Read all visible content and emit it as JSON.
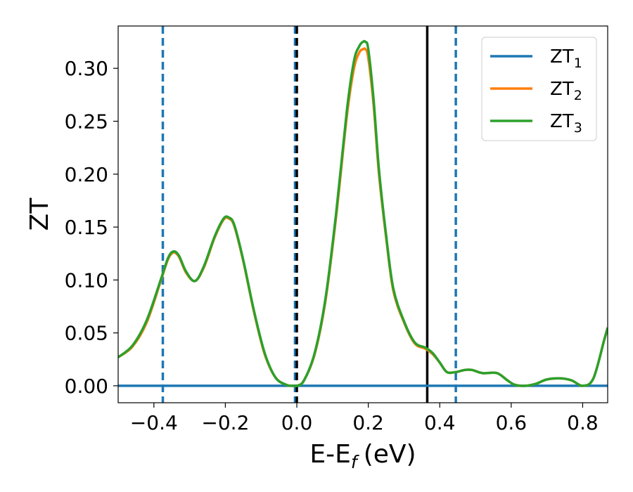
{
  "chart_data": {
    "type": "line",
    "title": "",
    "xlabel": "E-E",
    "xlabel_sub": "f",
    "xlabel_unit": "(eV)",
    "ylabel": "ZT",
    "xlim": [
      -0.5,
      0.87
    ],
    "ylim": [
      -0.016,
      0.34
    ],
    "grid": false,
    "legend_position": "top-right",
    "xticks": [
      -0.4,
      -0.2,
      0.0,
      0.2,
      0.4,
      0.6,
      0.8
    ],
    "xtick_labels": [
      "−0.4",
      "−0.2",
      "0.0",
      "0.2",
      "0.4",
      "0.6",
      "0.8"
    ],
    "yticks": [
      0.0,
      0.05,
      0.1,
      0.15,
      0.2,
      0.25,
      0.3
    ],
    "ytick_labels": [
      "0.00",
      "0.05",
      "0.10",
      "0.15",
      "0.20",
      "0.25",
      "0.30"
    ],
    "vlines": [
      {
        "x": -0.375,
        "color": "#1f77b4",
        "style": "dashed"
      },
      {
        "x": -0.005,
        "color": "#1f77b4",
        "style": "dashed"
      },
      {
        "x": 0.0,
        "color": "#000000",
        "style": "dashed"
      },
      {
        "x": 0.365,
        "color": "#000000",
        "style": "solid"
      },
      {
        "x": 0.445,
        "color": "#1f77b4",
        "style": "dashed"
      }
    ],
    "series": [
      {
        "name": "ZT",
        "name_sub": "1",
        "color": "#1f77b4",
        "x": [
          -0.5,
          -0.3,
          -0.1,
          0.0,
          0.2,
          0.4,
          0.6,
          0.8,
          0.87
        ],
        "y": [
          0.0,
          0.0,
          0.0,
          0.0,
          0.0,
          0.0,
          0.0,
          0.0,
          0.0
        ]
      },
      {
        "name": "ZT",
        "name_sub": "2",
        "color": "#ff7f0e",
        "x": [
          -0.5,
          -0.46,
          -0.42,
          -0.38,
          -0.36,
          -0.345,
          -0.33,
          -0.31,
          -0.285,
          -0.26,
          -0.23,
          -0.205,
          -0.19,
          -0.175,
          -0.15,
          -0.12,
          -0.09,
          -0.06,
          -0.03,
          -0.01,
          0.0,
          0.02,
          0.05,
          0.08,
          0.11,
          0.14,
          0.16,
          0.175,
          0.185,
          0.192,
          0.2,
          0.215,
          0.23,
          0.25,
          0.27,
          0.3,
          0.33,
          0.36,
          0.38,
          0.4,
          0.42,
          0.445,
          0.47,
          0.49,
          0.52,
          0.56,
          0.59,
          0.61,
          0.64,
          0.67,
          0.7,
          0.74,
          0.77,
          0.8,
          0.83,
          0.86,
          0.87
        ],
        "y": [
          0.027,
          0.037,
          0.06,
          0.1,
          0.12,
          0.126,
          0.122,
          0.107,
          0.099,
          0.112,
          0.14,
          0.157,
          0.158,
          0.151,
          0.118,
          0.07,
          0.03,
          0.008,
          0.001,
          0.0,
          0.0,
          0.005,
          0.03,
          0.08,
          0.16,
          0.255,
          0.3,
          0.315,
          0.318,
          0.318,
          0.31,
          0.265,
          0.2,
          0.14,
          0.09,
          0.06,
          0.04,
          0.035,
          0.03,
          0.022,
          0.013,
          0.013,
          0.015,
          0.015,
          0.012,
          0.012,
          0.005,
          0.001,
          0.0,
          0.002,
          0.006,
          0.007,
          0.005,
          0.0,
          0.007,
          0.043,
          0.055
        ]
      },
      {
        "name": "ZT",
        "name_sub": "3",
        "color": "#2ca02c",
        "x": [
          -0.5,
          -0.46,
          -0.42,
          -0.38,
          -0.36,
          -0.345,
          -0.33,
          -0.31,
          -0.285,
          -0.26,
          -0.23,
          -0.205,
          -0.19,
          -0.175,
          -0.15,
          -0.12,
          -0.09,
          -0.06,
          -0.03,
          -0.01,
          0.0,
          0.02,
          0.05,
          0.08,
          0.11,
          0.14,
          0.16,
          0.175,
          0.185,
          0.192,
          0.2,
          0.215,
          0.23,
          0.25,
          0.27,
          0.3,
          0.33,
          0.36,
          0.38,
          0.4,
          0.42,
          0.445,
          0.47,
          0.49,
          0.52,
          0.56,
          0.59,
          0.61,
          0.64,
          0.67,
          0.7,
          0.74,
          0.77,
          0.8,
          0.83,
          0.86,
          0.87
        ],
        "y": [
          0.027,
          0.038,
          0.062,
          0.101,
          0.121,
          0.127,
          0.123,
          0.108,
          0.099,
          0.113,
          0.141,
          0.158,
          0.159,
          0.152,
          0.119,
          0.071,
          0.031,
          0.008,
          0.001,
          0.0,
          0.0,
          0.005,
          0.031,
          0.082,
          0.163,
          0.26,
          0.307,
          0.321,
          0.325,
          0.325,
          0.318,
          0.27,
          0.204,
          0.142,
          0.092,
          0.061,
          0.041,
          0.036,
          0.031,
          0.022,
          0.013,
          0.013,
          0.015,
          0.015,
          0.012,
          0.012,
          0.005,
          0.001,
          0.0,
          0.002,
          0.006,
          0.007,
          0.005,
          0.0,
          0.007,
          0.043,
          0.055
        ]
      }
    ]
  }
}
